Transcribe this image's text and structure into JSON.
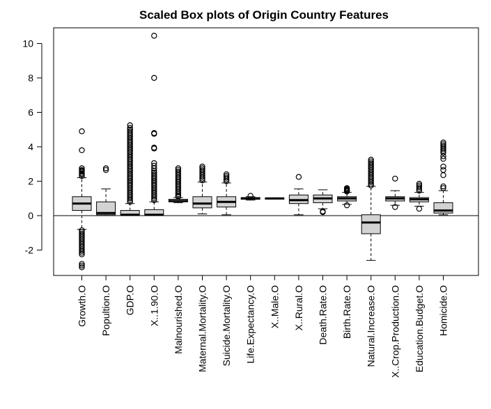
{
  "chart_data": {
    "type": "boxplot",
    "title": "Scaled Box plots of Origin Country Features",
    "xlabel": "",
    "ylabel": "",
    "ylim": [
      -3.5,
      11.0
    ],
    "yticks": [
      -2,
      0,
      2,
      4,
      6,
      8,
      10
    ],
    "reference_line": 0,
    "box_fill": "#d3d3d3",
    "categories": [
      "Growth.O",
      "Popultion.O",
      "GDP.O",
      "X..1.90.O",
      "Malnourished.O",
      "Maternal.Mortality.O",
      "Suicide.Mortality.O",
      "Life.Expectancy.O",
      "X..Male.O",
      "X..Rural.O",
      "Death.Rate.O",
      "Birth.Rate.O",
      "Natural.Increase.O",
      "X..Crop.Production.O",
      "Education.Budget.O",
      "Homicide.O"
    ],
    "boxes": [
      {
        "whisker_low": -0.8,
        "q1": 0.3,
        "median": 0.7,
        "q3": 1.1,
        "whisker_high": 2.2,
        "outliers": [
          4.9,
          3.8,
          2.75,
          2.65,
          2.6,
          2.55,
          2.45,
          2.4,
          2.3,
          -0.85,
          -0.95,
          -1.05,
          -1.15,
          -1.25,
          -1.35,
          -1.45,
          -1.55,
          -1.65,
          -1.75,
          -1.85,
          -1.95,
          -2.05,
          -2.15,
          -2.25,
          -2.8,
          -2.9,
          -3.0
        ]
      },
      {
        "whisker_low": 0.0,
        "q1": 0.05,
        "median": 0.15,
        "q3": 0.8,
        "whisker_high": 1.55,
        "outliers": [
          2.75,
          2.65
        ]
      },
      {
        "whisker_low": 0.0,
        "q1": 0.0,
        "median": 0.05,
        "q3": 0.3,
        "whisker_high": 0.7,
        "outliers": [
          5.25,
          5.1,
          5.0,
          4.9,
          4.8,
          4.7,
          4.6,
          4.5,
          4.4,
          4.3,
          4.2,
          4.1,
          4.0,
          3.9,
          3.8,
          3.7,
          3.6,
          3.5,
          3.4,
          3.3,
          3.2,
          3.1,
          3.0,
          2.9,
          2.8,
          2.7,
          2.6,
          2.5,
          2.4,
          2.3,
          2.2,
          2.1,
          2.0,
          1.9,
          1.8,
          1.7,
          1.6,
          1.5,
          1.4,
          1.3,
          1.2,
          1.1,
          1.0,
          0.9,
          0.8
        ]
      },
      {
        "whisker_low": 0.0,
        "q1": 0.0,
        "median": 0.05,
        "q3": 0.35,
        "whisker_high": 0.8,
        "outliers": [
          10.45,
          8.0,
          4.8,
          4.75,
          3.95,
          3.9,
          3.05,
          2.9,
          2.75,
          2.6,
          2.5,
          2.4,
          2.3,
          2.2,
          2.1,
          2.0,
          1.9,
          1.8,
          1.7,
          1.6,
          1.5,
          1.4,
          1.3,
          1.2,
          1.1,
          1.0,
          0.9
        ]
      },
      {
        "whisker_low": 0.75,
        "q1": 0.8,
        "median": 0.85,
        "q3": 0.95,
        "whisker_high": 1.05,
        "outliers": [
          2.75,
          2.65,
          2.55,
          2.45,
          2.35,
          2.25,
          2.15,
          2.05,
          1.95,
          1.85,
          1.75,
          1.65,
          1.55,
          1.45,
          1.35,
          1.25,
          1.15,
          1.1
        ]
      },
      {
        "whisker_low": 0.1,
        "q1": 0.45,
        "median": 0.7,
        "q3": 1.1,
        "whisker_high": 1.95,
        "outliers": [
          2.85,
          2.75,
          2.65,
          2.55,
          2.45,
          2.35,
          2.25,
          2.15,
          2.05
        ]
      },
      {
        "whisker_low": 0.05,
        "q1": 0.5,
        "median": 0.8,
        "q3": 1.1,
        "whisker_high": 1.9,
        "outliers": [
          2.4,
          2.3,
          2.2,
          2.1,
          2.0
        ]
      },
      {
        "whisker_low": 0.9,
        "q1": 0.95,
        "median": 1.0,
        "q3": 1.05,
        "whisker_high": 1.1,
        "outliers": [
          1.15
        ]
      },
      {
        "whisker_low": 0.98,
        "q1": 0.99,
        "median": 1.0,
        "q3": 1.02,
        "whisker_high": 1.03,
        "outliers": []
      },
      {
        "whisker_low": 0.05,
        "q1": 0.7,
        "median": 0.9,
        "q3": 1.2,
        "whisker_high": 1.55,
        "outliers": [
          2.25
        ]
      },
      {
        "whisker_low": 0.4,
        "q1": 0.75,
        "median": 1.0,
        "q3": 1.2,
        "whisker_high": 1.5,
        "outliers": [
          0.25,
          0.2
        ]
      },
      {
        "whisker_low": 0.65,
        "q1": 0.85,
        "median": 1.0,
        "q3": 1.1,
        "whisker_high": 1.35,
        "outliers": [
          1.6,
          1.55,
          1.5,
          1.45,
          1.4,
          0.6
        ]
      },
      {
        "whisker_low": -2.6,
        "q1": -1.05,
        "median": -0.4,
        "q3": 0.05,
        "whisker_high": 1.7,
        "outliers": [
          3.25,
          3.15,
          3.05,
          2.95,
          2.85,
          2.75,
          2.65,
          2.55,
          2.45,
          2.35,
          2.25,
          2.15,
          2.05,
          1.95,
          1.85,
          1.75
        ]
      },
      {
        "whisker_low": 0.6,
        "q1": 0.85,
        "median": 1.0,
        "q3": 1.1,
        "whisker_high": 1.45,
        "outliers": [
          2.15,
          0.5
        ]
      },
      {
        "whisker_low": 0.55,
        "q1": 0.8,
        "median": 0.95,
        "q3": 1.05,
        "whisker_high": 1.35,
        "outliers": [
          1.85,
          1.75,
          1.65,
          1.55,
          1.45,
          0.4
        ]
      },
      {
        "whisker_low": 0.05,
        "q1": 0.15,
        "median": 0.3,
        "q3": 0.75,
        "whisker_high": 1.45,
        "outliers": [
          4.25,
          4.15,
          4.05,
          3.95,
          3.85,
          3.75,
          3.65,
          3.45,
          3.3,
          2.85,
          2.65,
          2.35,
          1.7,
          1.6
        ]
      }
    ]
  }
}
